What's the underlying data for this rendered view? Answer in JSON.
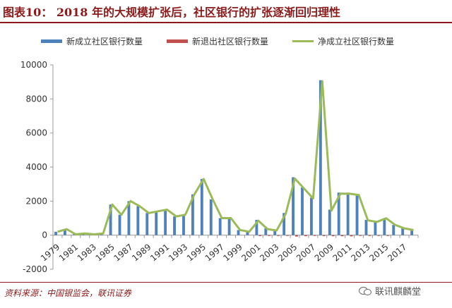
{
  "header": {
    "title": "图表10： 2018 年的大规模扩张后，社区银行的扩张逐渐回归理性"
  },
  "footer": {
    "source": "资料来源：中国银监会，联讯证券",
    "watermark": "联讯麒麟堂"
  },
  "colors": {
    "accent": "#8b1a1a",
    "new_bar": "#4f81bd",
    "exit_bar": "#c0504d",
    "net_line": "#9bbb59"
  },
  "chart_data": {
    "type": "bar",
    "title": "",
    "xlabel": "",
    "ylabel": "",
    "ylim": [
      -2000,
      10000
    ],
    "yticks": [
      -2000,
      0,
      2000,
      4000,
      6000,
      8000,
      10000
    ],
    "x_tick_labels": [
      "1979",
      "1981",
      "1983",
      "1985",
      "1987",
      "1989",
      "1991",
      "1993",
      "1995",
      "1997",
      "1999",
      "2001",
      "2003",
      "2005",
      "2007",
      "2009",
      "2011",
      "2013",
      "2015",
      "2017"
    ],
    "legend_position": "top",
    "grid": false,
    "categories": [
      "1979",
      "1980",
      "1981",
      "1982",
      "1983",
      "1984",
      "1985",
      "1986",
      "1987",
      "1988",
      "1989",
      "1990",
      "1991",
      "1992",
      "1993",
      "1994",
      "1995",
      "1996",
      "1997",
      "1998",
      "1999",
      "2000",
      "2001",
      "2002",
      "2003",
      "2004",
      "2005",
      "2006",
      "2007",
      "2008",
      "2009",
      "2010",
      "2011",
      "2012",
      "2013",
      "2014",
      "2015",
      "2016",
      "2017",
      "2018"
    ],
    "series": [
      {
        "name": "新成立社区银行数量",
        "type": "bar",
        "values": [
          200,
          350,
          50,
          100,
          50,
          100,
          1800,
          1200,
          2000,
          1700,
          1300,
          1400,
          1500,
          1100,
          1200,
          2400,
          3300,
          2100,
          1000,
          1000,
          300,
          200,
          900,
          400,
          300,
          1300,
          3400,
          2800,
          2200,
          9100,
          1500,
          2500,
          2500,
          2400,
          900,
          800,
          1000,
          600,
          400,
          300
        ]
      },
      {
        "name": "新退出社区银行数量",
        "type": "bar",
        "values": [
          0,
          0,
          0,
          0,
          0,
          0,
          0,
          0,
          0,
          0,
          0,
          0,
          0,
          0,
          0,
          0,
          0,
          0,
          0,
          0,
          0,
          0,
          -50,
          -40,
          -30,
          -40,
          -80,
          -60,
          -40,
          -50,
          -60,
          -60,
          -70,
          -40,
          -30,
          -20,
          -10,
          0,
          0,
          0
        ]
      },
      {
        "name": "净成立社区银行数量",
        "type": "line",
        "values": [
          200,
          350,
          50,
          100,
          50,
          100,
          1800,
          1200,
          2000,
          1700,
          1300,
          1400,
          1500,
          1100,
          1200,
          2400,
          3300,
          2100,
          1000,
          1000,
          300,
          200,
          850,
          360,
          270,
          1260,
          3320,
          2740,
          2160,
          9050,
          1440,
          2440,
          2430,
          2360,
          870,
          780,
          990,
          600,
          400,
          300
        ]
      }
    ]
  }
}
